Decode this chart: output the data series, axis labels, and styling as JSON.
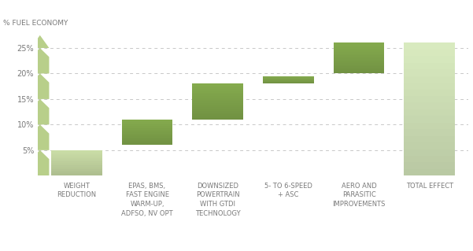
{
  "categories": [
    "WEIGHT\nREDUCTION",
    "EPAS, BMS,\nFAST ENGINE\nWARM-UP,\nADFSO, NV OPT",
    "DOWNSIZED\nPOWERTRAIN\nWITH GTDI\nTECHNOLOGY",
    "5- TO 6-SPEED\n+ ASC",
    "AERO AND\nPARASITIC\nIMPROVEMENTS",
    "TOTAL EFFECT"
  ],
  "bar_bottoms": [
    0,
    6,
    11,
    18,
    20,
    0
  ],
  "bar_tops": [
    5,
    11,
    18,
    19.5,
    26,
    26
  ],
  "bar_colors": [
    "#ccdfa8",
    "#85ab4e",
    "#85ab4e",
    "#85ab4e",
    "#85ab4e",
    "#daecc0"
  ],
  "ylabel": "% FUEL ECONOMY",
  "yticks": [
    5,
    10,
    15,
    20,
    25
  ],
  "ymax": 28.5,
  "ymin": 0,
  "background_color": "#ffffff",
  "grid_color": "#c8c8c8",
  "text_color": "#7a7a7a",
  "chevron_color": "#b8cf8a",
  "ylabel_fontsize": 6.5,
  "tick_fontsize": 7,
  "xlabel_fontsize": 6
}
